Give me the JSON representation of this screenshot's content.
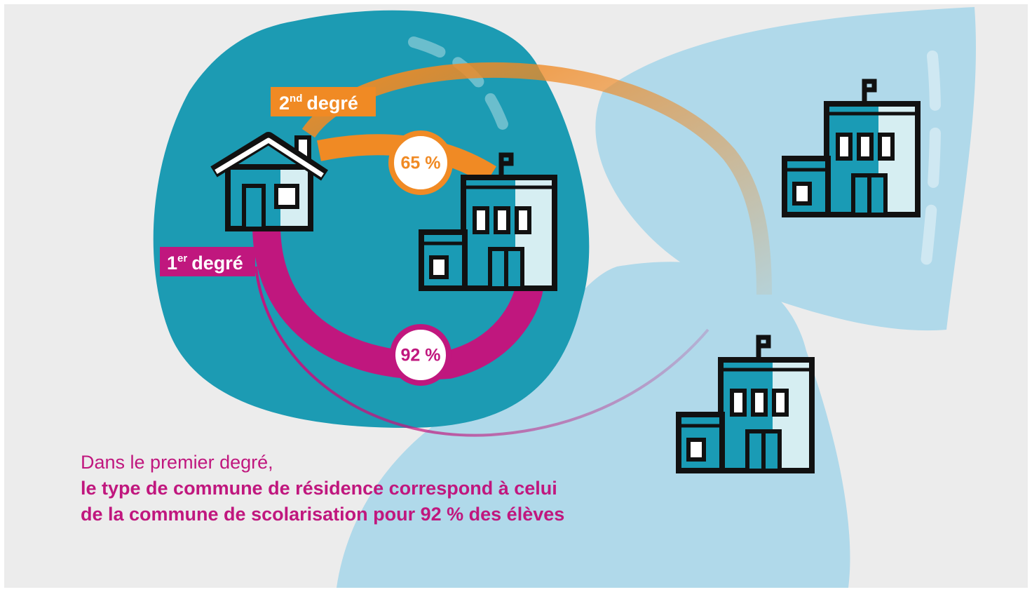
{
  "labels": {
    "secondary": {
      "number": "2",
      "sup": "nd",
      "word": "degré",
      "rate": "65 %"
    },
    "primary": {
      "number": "1",
      "sup": "er",
      "word": "degré",
      "rate": "92 %"
    }
  },
  "caption": {
    "line1": "Dans le premier degré,",
    "line2": "le type de commune de résidence correspond à celui",
    "line3": "de la commune de scolarisation pour 92 % des élèves"
  }
}
